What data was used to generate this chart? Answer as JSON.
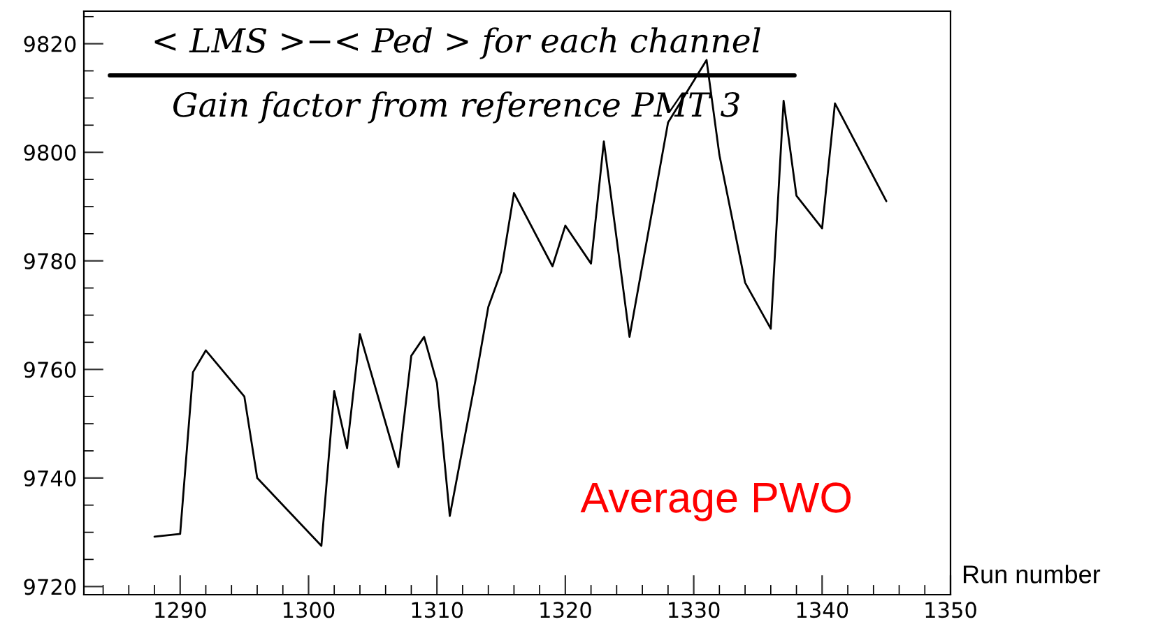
{
  "chart_data": {
    "type": "line",
    "title": "< LMS >−< Ped > for each channel",
    "subtitle": "Gain factor from reference PMT 3",
    "xlabel": "Run number",
    "x": [
      1288,
      1290,
      1291,
      1292,
      1295,
      1296,
      1301,
      1302,
      1303,
      1304,
      1307,
      1308,
      1309,
      1310,
      1311,
      1313,
      1314,
      1315,
      1316,
      1319,
      1320,
      1322,
      1323,
      1325,
      1328,
      1331,
      1332,
      1334,
      1336,
      1337,
      1338,
      1340,
      1341,
      1345
    ],
    "series": [
      {
        "color": "#000000",
        "values": [
          9729.2,
          9729.7,
          9759.5,
          9763.5,
          9755,
          9740,
          9727.5,
          9756,
          9745.5,
          9766.5,
          9742,
          9762.5,
          9766,
          9757.5,
          9733,
          9758,
          9771.5,
          9778,
          9792.5,
          9779,
          9786.5,
          9779.5,
          9802,
          9766,
          9805.5,
          9817,
          9799.5,
          9776,
          9767.5,
          9809.5,
          9792,
          9786,
          9809,
          9791
        ]
      }
    ],
    "xlim": [
      1282.5,
      1350
    ],
    "xticks": [
      1290,
      1300,
      1310,
      1320,
      1330,
      1340,
      1350
    ],
    "ylim": [
      9718.5,
      9826
    ],
    "yticks": [
      9720,
      9740,
      9760,
      9780,
      9800,
      9820
    ],
    "grid": false,
    "legend": false,
    "marker": "none",
    "line_style": "solid",
    "annotations": [
      "Average PWO"
    ]
  }
}
